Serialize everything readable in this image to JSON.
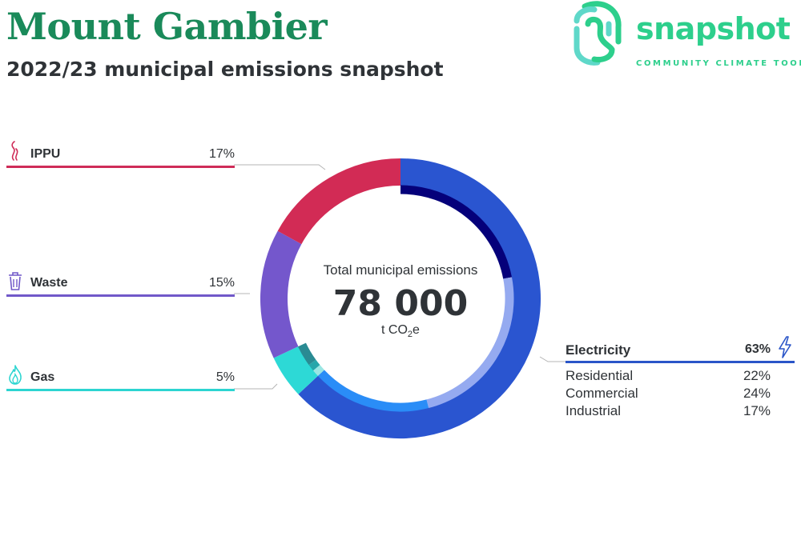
{
  "header": {
    "title": "Mount Gambier",
    "subtitle": "2022/23 municipal emissions snapshot"
  },
  "logo": {
    "wordmark": "snapshot",
    "tagline": "COMMUNITY CLIMATE TOOL",
    "icon": "fingerprint-swirl-icon",
    "colors": {
      "primary": "#2dcf8c",
      "secondary": "#5fd8c9"
    }
  },
  "chart_data": {
    "type": "pie",
    "style": "donut",
    "title": "",
    "center": {
      "caption": "Total municipal emissions",
      "value": "78 000",
      "unit_prefix": "t CO",
      "unit_sub": "2",
      "unit_suffix": "e"
    },
    "slices": [
      {
        "name": "Electricity",
        "percent": 63,
        "color": "#2a55d0",
        "icon": "lightning-icon",
        "subsectors": [
          {
            "name": "Residential",
            "percent": 22,
            "color": "#05007a"
          },
          {
            "name": "Commercial",
            "percent": 24,
            "color": "#95aaf0"
          },
          {
            "name": "Industrial",
            "percent": 17,
            "color": "#2a8df7"
          }
        ]
      },
      {
        "name": "Gas",
        "percent": 5,
        "color": "#2dd9d6",
        "icon": "flame-icon",
        "subsectors": [
          {
            "name": "",
            "percent": 1,
            "color": "#9ae6e3"
          },
          {
            "name": "",
            "percent": 1,
            "color": "#26a6aa"
          },
          {
            "name": "",
            "percent": 3,
            "color": "#2a8b93"
          }
        ]
      },
      {
        "name": "Waste",
        "percent": 15,
        "color": "#7457cc",
        "icon": "trash-can-icon",
        "subsectors": []
      },
      {
        "name": "IPPU",
        "percent": 17,
        "color": "#d22b55",
        "icon": "smoke-icon",
        "subsectors": []
      }
    ]
  },
  "legend": {
    "ippu": {
      "label": "IPPU",
      "value": "17%",
      "color": "#cf2c58"
    },
    "waste": {
      "label": "Waste",
      "value": "15%",
      "color": "#7159c9"
    },
    "gas": {
      "label": "Gas",
      "value": "5%",
      "color": "#2dd5d1"
    },
    "electricity": {
      "label": "Electricity",
      "value": "63%",
      "color": "#2a55c8",
      "items": [
        {
          "label": "Residential",
          "value": "22%"
        },
        {
          "label": "Commercial",
          "value": "24%"
        },
        {
          "label": "Industrial",
          "value": "17%"
        }
      ]
    }
  }
}
